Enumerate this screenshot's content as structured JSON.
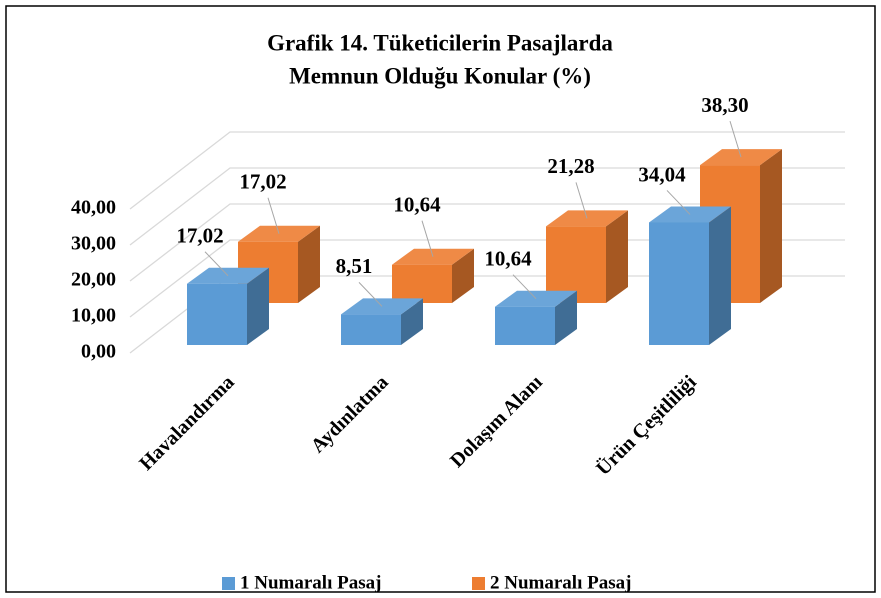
{
  "chart_data": {
    "type": "bar3d",
    "title": [
      "Grafik 14. Tüketicilerin Pasajlarda",
      "Memnun Olduğu Konular (%)"
    ],
    "categories": [
      "Havalandırma",
      "Aydınlatma",
      "Dolaşım Alanı",
      "Ürün Çeşitliliği"
    ],
    "series": [
      {
        "name": "1 Numaralı Pasaj",
        "color": "#5b9bd5",
        "values": [
          17.02,
          8.51,
          10.64,
          34.04
        ],
        "value_labels": [
          "17,02",
          "8,51",
          "10,64",
          "34,04"
        ]
      },
      {
        "name": "2 Numaralı Pasaj",
        "color": "#ed7d31",
        "values": [
          17.02,
          10.64,
          21.28,
          38.3
        ],
        "value_labels": [
          "17,02",
          "10,64",
          "21,28",
          "38,30"
        ]
      }
    ],
    "ylim": [
      0,
      40
    ],
    "yticks": [
      {
        "value": 0,
        "label": "0,00"
      },
      {
        "value": 10,
        "label": "10,00"
      },
      {
        "value": 20,
        "label": "20,00"
      },
      {
        "value": 30,
        "label": "30,00"
      },
      {
        "value": 40,
        "label": "40,00"
      }
    ],
    "grid": true,
    "legend": "bottom"
  }
}
